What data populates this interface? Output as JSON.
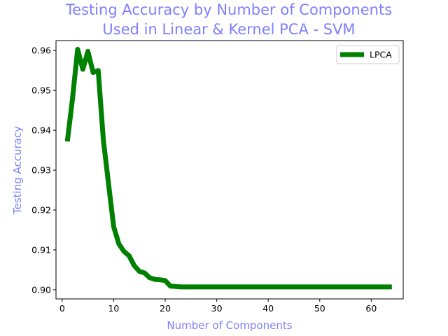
{
  "chart_data": {
    "type": "line",
    "title_lines": [
      "Testing Accuracy by Number of Components",
      "Used in Linear & Kernel PCA - SVM"
    ],
    "xlabel": "Number of Components",
    "ylabel": "Testing Accuracy",
    "xlim": [
      -1.2,
      66.2
    ],
    "ylim": [
      0.8977,
      0.9625
    ],
    "xticks": [
      0,
      10,
      20,
      30,
      40,
      50,
      60
    ],
    "yticks": [
      0.9,
      0.91,
      0.92,
      0.93,
      0.94,
      0.95,
      0.96
    ],
    "ytick_labels": [
      "0.90",
      "0.91",
      "0.92",
      "0.93",
      "0.94",
      "0.95",
      "0.96"
    ],
    "grid": false,
    "legend_position": "top-right",
    "text_color": "#7f7fff",
    "series": [
      {
        "name": "LPCA",
        "color": "#008000",
        "x": [
          1,
          2,
          3,
          4,
          5,
          6,
          7,
          8,
          9,
          10,
          11,
          12,
          13,
          14,
          15,
          16,
          17,
          18,
          19,
          20,
          21,
          22,
          23,
          24,
          25,
          26,
          27,
          28,
          29,
          30,
          31,
          32,
          33,
          34,
          35,
          36,
          37,
          38,
          39,
          40,
          41,
          42,
          43,
          44,
          45,
          46,
          47,
          48,
          49,
          50,
          51,
          52,
          53,
          54,
          55,
          56,
          57,
          58,
          59,
          60,
          61,
          62,
          63,
          64
        ],
        "y": [
          0.9372,
          0.9478,
          0.9603,
          0.9553,
          0.9598,
          0.9545,
          0.955,
          0.9375,
          0.9265,
          0.9158,
          0.9115,
          0.9096,
          0.9085,
          0.906,
          0.9046,
          0.9042,
          0.903,
          0.9026,
          0.9025,
          0.9023,
          0.9009,
          0.9008,
          0.9007,
          0.9007,
          0.9007,
          0.9007,
          0.9007,
          0.9007,
          0.9007,
          0.9007,
          0.9007,
          0.9007,
          0.9007,
          0.9007,
          0.9007,
          0.9007,
          0.9007,
          0.9007,
          0.9007,
          0.9007,
          0.9007,
          0.9007,
          0.9007,
          0.9007,
          0.9007,
          0.9007,
          0.9007,
          0.9007,
          0.9007,
          0.9007,
          0.9007,
          0.9007,
          0.9007,
          0.9007,
          0.9007,
          0.9007,
          0.9007,
          0.9007,
          0.9007,
          0.9007,
          0.9007,
          0.9007,
          0.9007,
          0.9007
        ]
      }
    ]
  }
}
